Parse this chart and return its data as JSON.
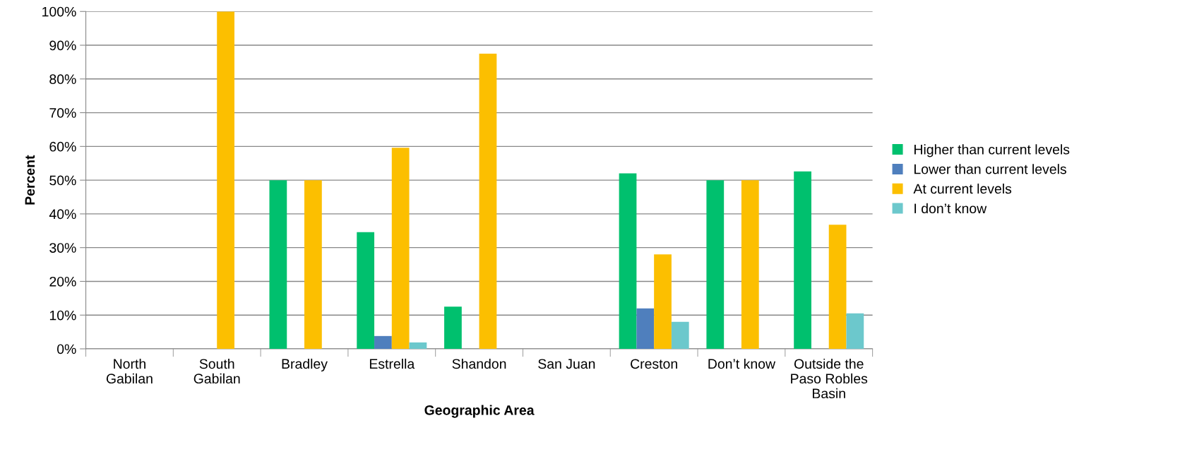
{
  "chart_data": {
    "type": "bar",
    "xlabel": "Geographic Area",
    "ylabel": "Percent",
    "categories": [
      "North\nGabilan",
      "South\nGabilan",
      "Bradley",
      "Estrella",
      "Shandon",
      "San Juan",
      "Creston",
      "Don’t know",
      "Outside the\nPaso Robles\nBasin"
    ],
    "series": [
      {
        "name": "Higher than current levels",
        "color": "#00c06e",
        "values": [
          null,
          null,
          50,
          34.6,
          12.5,
          null,
          52,
          50,
          52.6
        ]
      },
      {
        "name": "Lower than current levels",
        "color": "#4f7fbd",
        "values": [
          null,
          null,
          null,
          3.8,
          null,
          null,
          12,
          null,
          null
        ]
      },
      {
        "name": "At current levels",
        "color": "#fcbf00",
        "values": [
          null,
          100,
          50,
          59.6,
          87.5,
          null,
          28,
          50,
          36.8
        ]
      },
      {
        "name": "I don’t know",
        "color": "#6cc8cc",
        "values": [
          null,
          null,
          null,
          1.9,
          null,
          null,
          8,
          null,
          10.5
        ]
      }
    ],
    "ylim": [
      0,
      100
    ],
    "yticks": [
      {
        "value": 0,
        "label": "0%"
      },
      {
        "value": 10,
        "label": "10%"
      },
      {
        "value": 20,
        "label": "20%"
      },
      {
        "value": 30,
        "label": "30%"
      },
      {
        "value": 40,
        "label": "40%"
      },
      {
        "value": 50,
        "label": "50%"
      },
      {
        "value": 60,
        "label": "60%"
      },
      {
        "value": 70,
        "label": "70%"
      },
      {
        "value": 80,
        "label": "80%"
      },
      {
        "value": 90,
        "label": "90%"
      },
      {
        "value": 100,
        "label": "100%"
      }
    ],
    "grid": "y",
    "legend": "right"
  }
}
